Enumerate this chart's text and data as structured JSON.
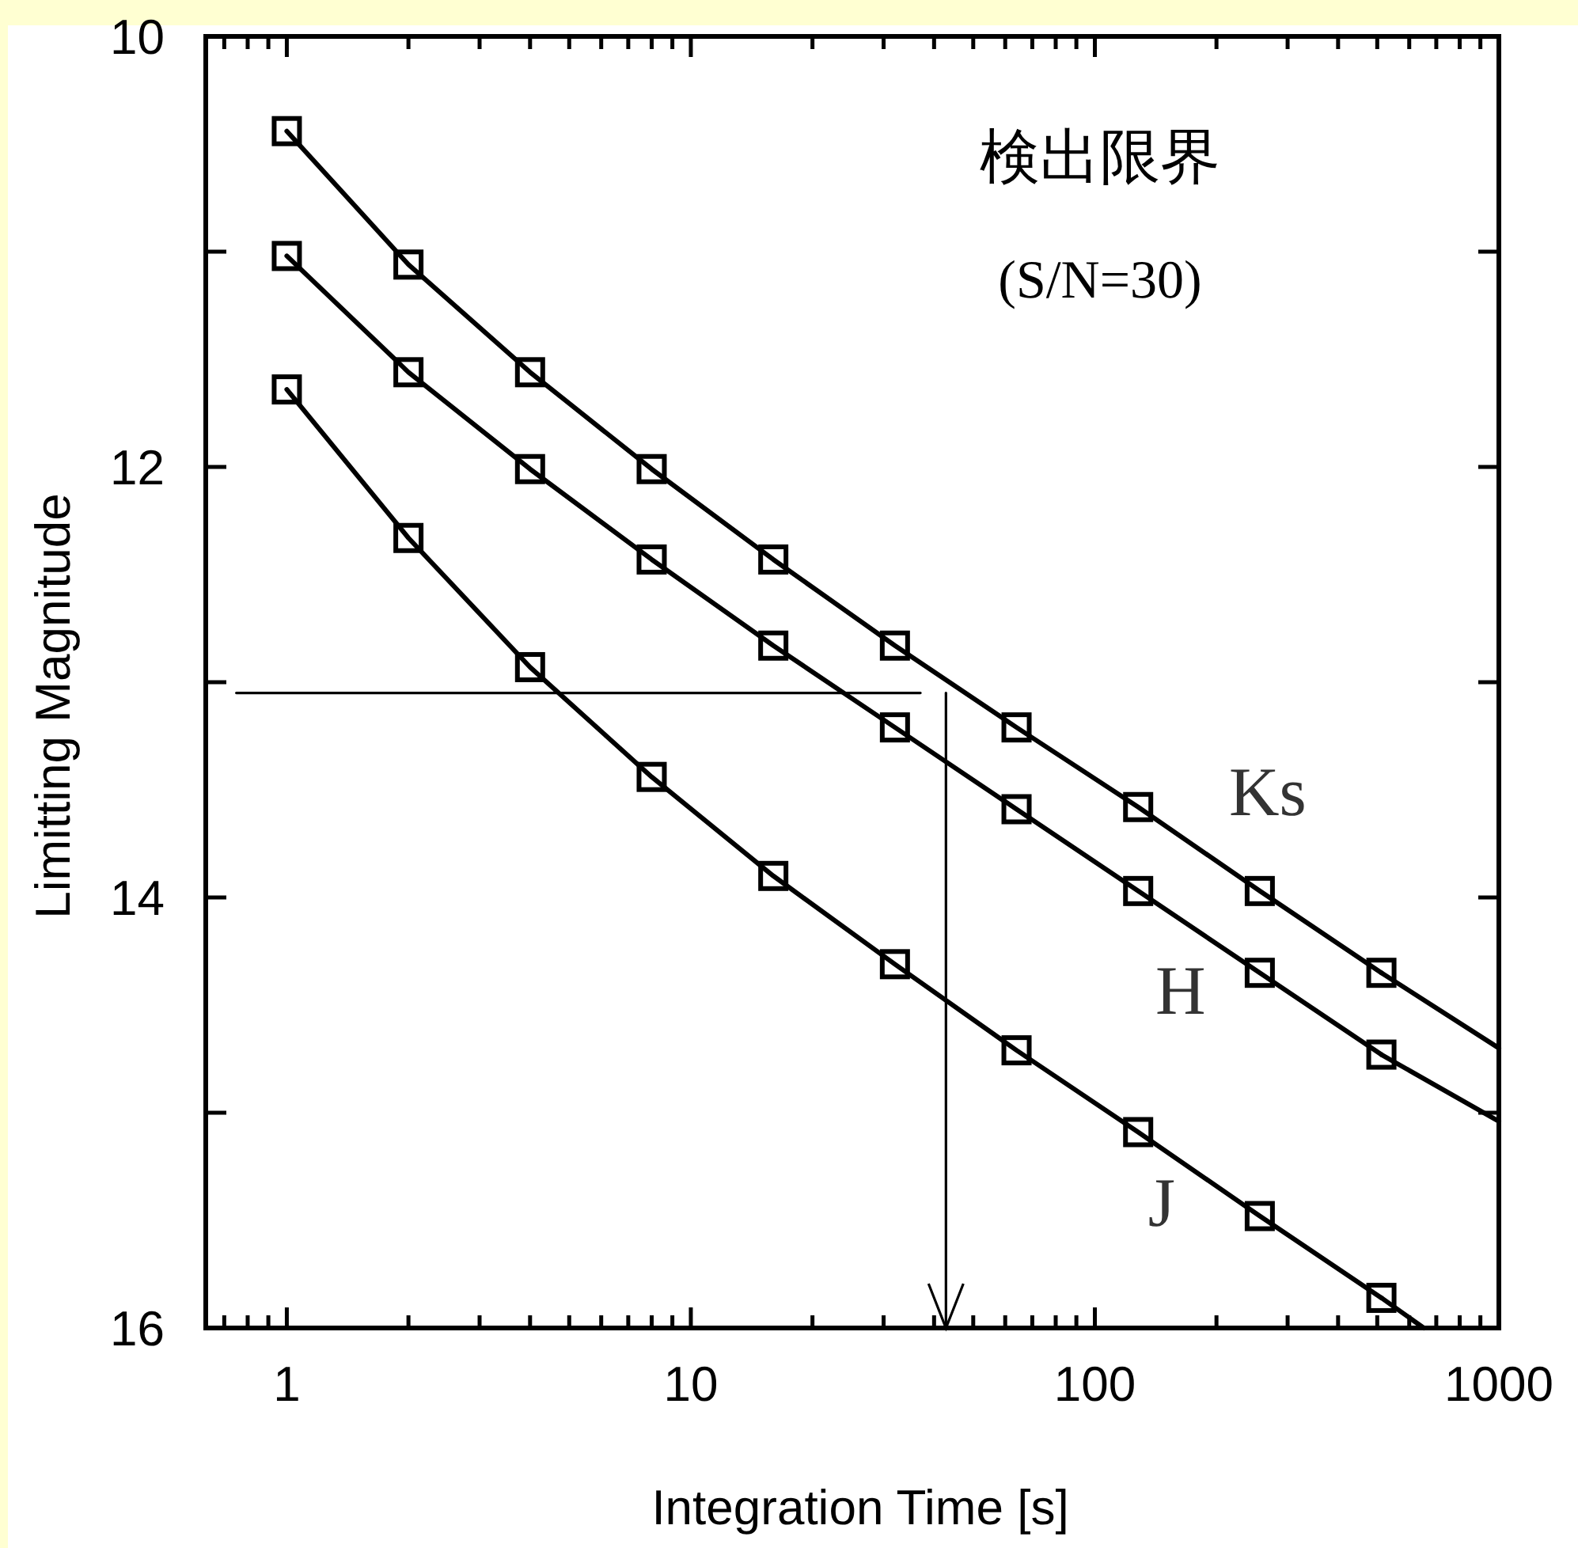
{
  "chart_data": {
    "type": "line",
    "title": "検出限界",
    "subtitle": "(S/N=30)",
    "xlabel": "Integration Time [s]",
    "ylabel": "Limitting Magnitude",
    "log": "x",
    "xlim": [
      0.63,
      1000
    ],
    "ylim": [
      16,
      10
    ],
    "xticks": [
      {
        "value": 0.7,
        "label": null
      },
      {
        "value": 0.8,
        "label": null
      },
      {
        "value": 0.9,
        "label": null
      },
      1,
      {
        "value": 2,
        "label": null
      },
      {
        "value": 3,
        "label": null
      },
      {
        "value": 4,
        "label": null
      },
      {
        "value": 5,
        "label": null
      },
      {
        "value": 6,
        "label": null
      },
      {
        "value": 7,
        "label": null
      },
      {
        "value": 8,
        "label": null
      },
      {
        "value": 9,
        "label": null
      },
      10,
      {
        "value": 20,
        "label": null
      },
      {
        "value": 30,
        "label": null
      },
      {
        "value": 40,
        "label": null
      },
      {
        "value": 50,
        "label": null
      },
      {
        "value": 60,
        "label": null
      },
      {
        "value": 70,
        "label": null
      },
      {
        "value": 80,
        "label": null
      },
      {
        "value": 90,
        "label": null
      },
      100,
      {
        "value": 200,
        "label": null
      },
      {
        "value": 300,
        "label": null
      },
      {
        "value": 400,
        "label": null
      },
      {
        "value": 500,
        "label": null
      },
      {
        "value": 600,
        "label": null
      },
      {
        "value": 700,
        "label": null
      },
      {
        "value": 800,
        "label": null
      },
      {
        "value": 900,
        "label": null
      },
      1000
    ],
    "yticks": [
      10,
      {
        "value": 11,
        "label": null
      },
      12,
      {
        "value": 13,
        "label": null
      },
      14,
      {
        "value": 15,
        "label": null
      },
      16
    ],
    "marker": "square",
    "line_style": "solid",
    "series": [
      {
        "name": "Ks",
        "color": "#000000",
        "x": [
          1,
          2,
          4,
          8,
          16,
          32,
          64,
          128,
          256,
          512
        ],
        "values": [
          10.44,
          11.06,
          11.56,
          12.01,
          12.43,
          12.83,
          13.21,
          13.58,
          13.97,
          14.35
        ]
      },
      {
        "name": "H",
        "color": "#000000",
        "x": [
          1,
          2,
          4,
          8,
          16,
          32,
          64,
          128,
          256,
          512
        ],
        "values": [
          11.02,
          11.56,
          12.01,
          12.43,
          12.83,
          13.21,
          13.59,
          13.97,
          14.35,
          14.73
        ]
      },
      {
        "name": "J",
        "color": "#000000",
        "x": [
          1,
          2,
          4,
          8,
          16,
          32,
          64,
          128,
          256,
          512
        ],
        "values": [
          11.64,
          12.33,
          12.93,
          13.44,
          13.9,
          14.31,
          14.71,
          15.09,
          15.48,
          15.86
        ]
      },
      {
        "type": "line",
        "marker": "none",
        "color": "#000000",
        "x": [
          512,
          1000
        ],
        "values": [
          14.35,
          14.7
        ]
      },
      {
        "type": "line",
        "marker": "none",
        "color": "#000000",
        "x": [
          512,
          1000
        ],
        "values": [
          14.73,
          15.04
        ]
      },
      {
        "type": "line",
        "marker": "none",
        "color": "#000000",
        "x": [
          512,
          652
        ],
        "values": [
          15.86,
          16
        ]
      },
      {
        "type": "line",
        "marker": "none",
        "color": "#000000",
        "x": [
          0.75,
          37
        ],
        "values": [
          13.05,
          13.05
        ]
      },
      {
        "type": "line",
        "marker": "none",
        "color": "#000000",
        "x": [
          42.8,
          42.8
        ],
        "values": [
          13.05,
          16
        ]
      }
    ]
  }
}
